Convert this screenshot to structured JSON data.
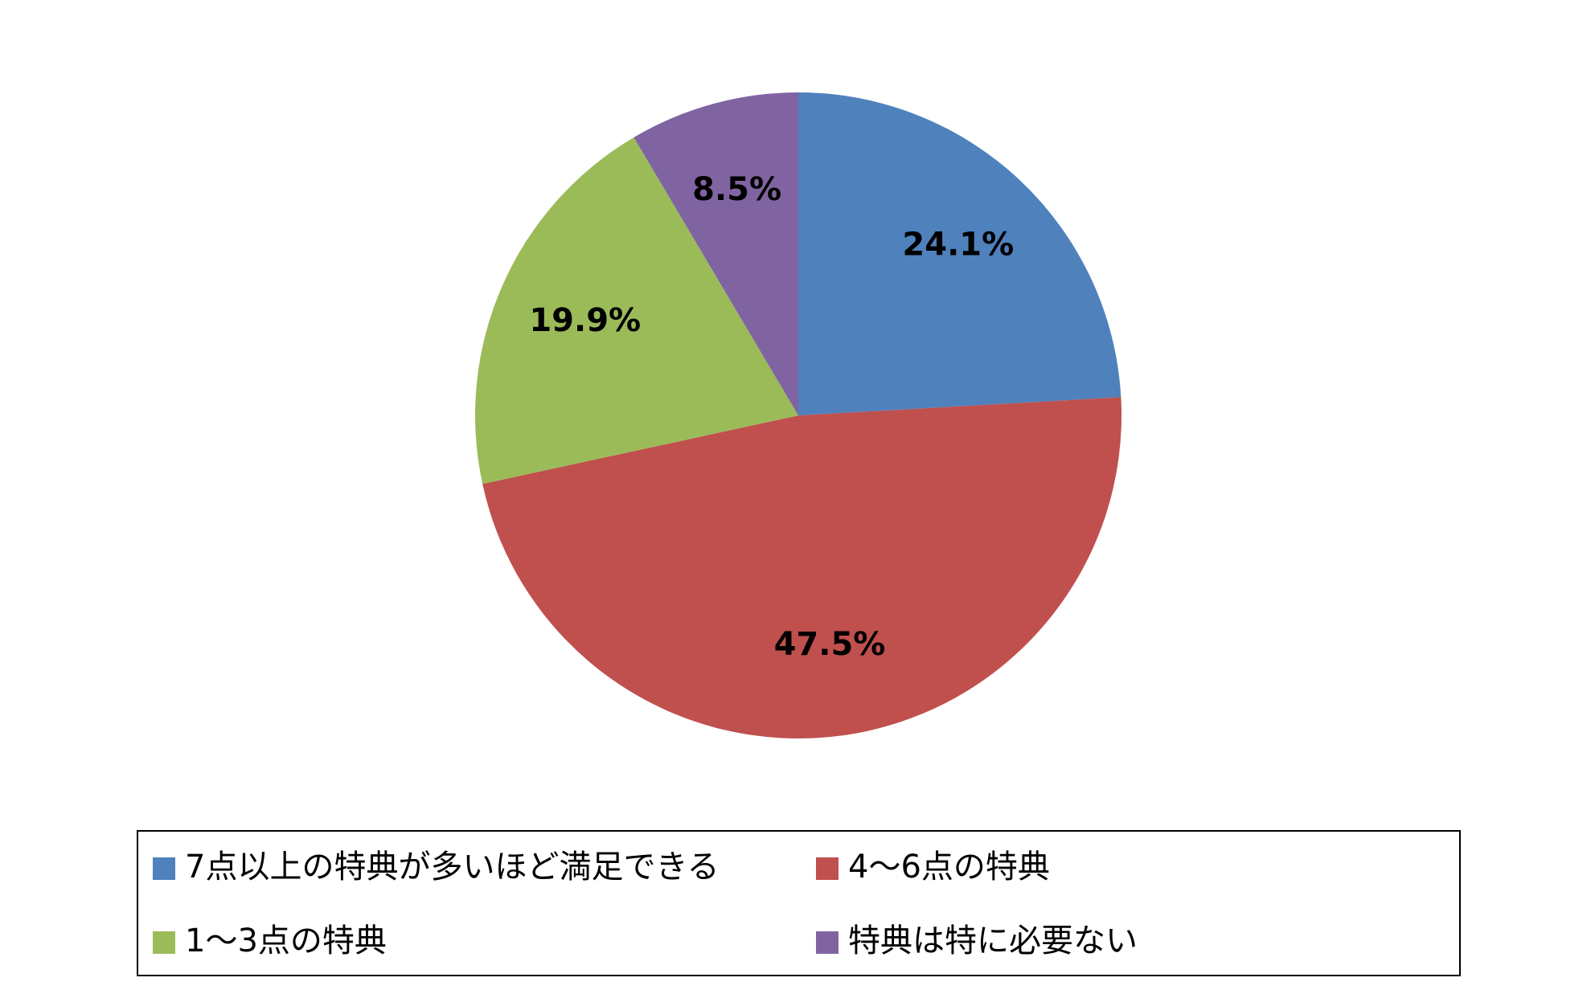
{
  "chart_data": {
    "type": "pie",
    "categories": [
      "7点以上の特典が多いほど満足できる",
      "4〜6点の特典",
      "1〜3点の特典",
      "特典は特に必要ない"
    ],
    "values": [
      24.1,
      47.5,
      19.9,
      8.5
    ],
    "value_labels": [
      "24.1%",
      "47.5%",
      "19.9%",
      "8.5%"
    ],
    "colors": [
      "#4f81bd",
      "#c0504d",
      "#9bbb59",
      "#8064a2"
    ],
    "legend": "bottom"
  }
}
